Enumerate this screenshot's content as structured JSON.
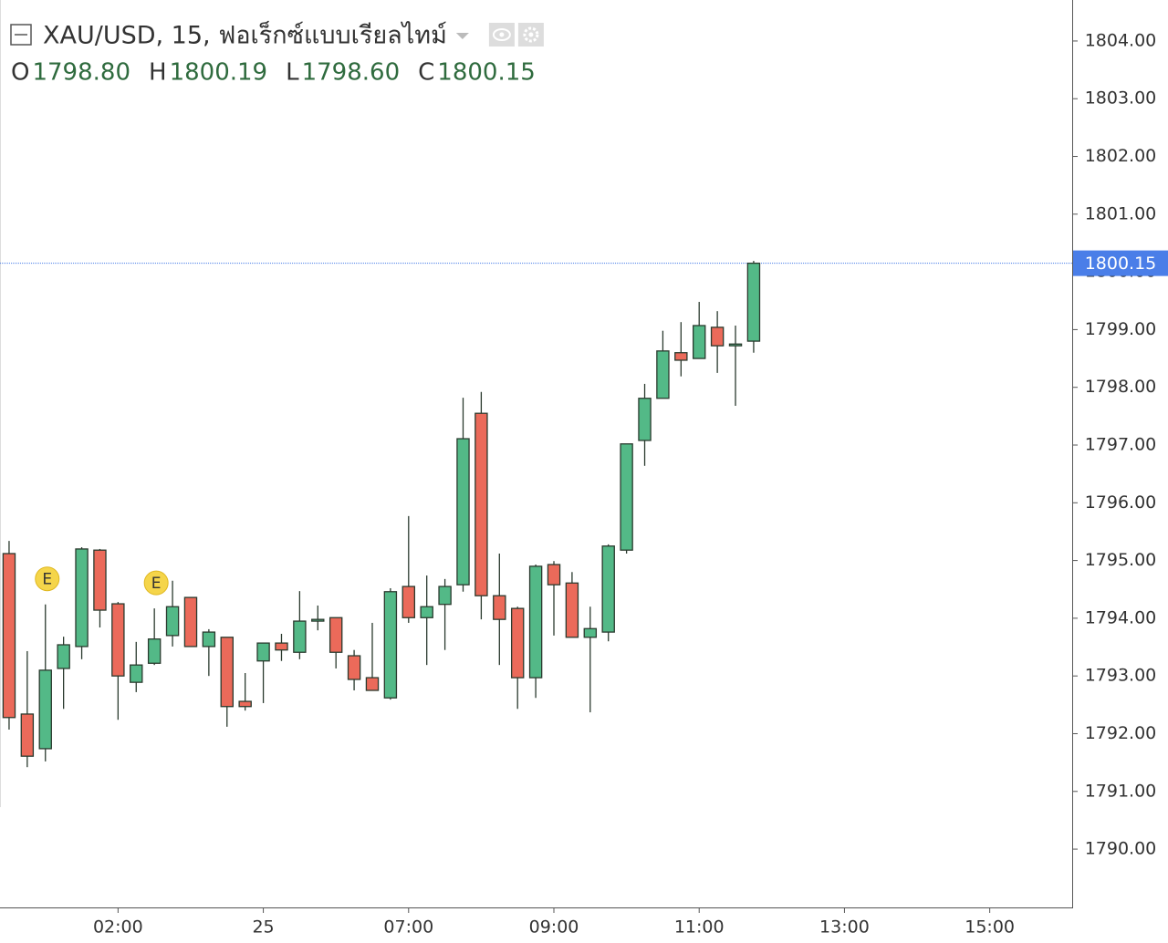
{
  "chart_data": {
    "type": "candlestick",
    "title": "XAU/USD, 15, ฟอเร็กซ์แบบเรียลไทม์",
    "ohlc_header": [
      {
        "key": "O",
        "value": "1798.80"
      },
      {
        "key": "H",
        "value": "1800.19"
      },
      {
        "key": "L",
        "value": "1798.60"
      },
      {
        "key": "C",
        "value": "1800.15"
      }
    ],
    "open": [
      1795.12,
      1792.34,
      1791.74,
      1793.13,
      1793.51,
      1795.18,
      1794.25,
      1792.89,
      1793.22,
      1793.7,
      1794.36,
      1793.51,
      1793.67,
      1792.56,
      1793.26,
      1793.57,
      1793.41,
      1793.95,
      1794.01,
      1793.35,
      1792.97,
      1792.62,
      1794.55,
      1794.01,
      1794.24,
      1794.58,
      1797.55,
      1794.39,
      1794.17,
      1792.97,
      1794.93,
      1794.61,
      1793.67,
      1793.76,
      1795.18,
      1797.08,
      1797.81,
      1798.6,
      1798.5,
      1799.04,
      1798.72,
      1798.8
    ],
    "high": [
      1795.34,
      1793.43,
      1794.24,
      1793.68,
      1795.23,
      1795.2,
      1794.28,
      1793.59,
      1794.17,
      1794.65,
      1794.36,
      1793.81,
      1793.67,
      1793.05,
      1793.57,
      1793.73,
      1794.47,
      1794.22,
      1794.01,
      1793.45,
      1793.92,
      1794.52,
      1795.77,
      1794.74,
      1794.68,
      1797.82,
      1797.92,
      1795.12,
      1794.2,
      1794.93,
      1794.99,
      1794.8,
      1794.2,
      1795.28,
      1797.02,
      1798.06,
      1798.98,
      1799.13,
      1799.48,
      1799.32,
      1799.07,
      1800.19
    ],
    "low": [
      1792.07,
      1791.42,
      1791.52,
      1792.43,
      1793.29,
      1793.84,
      1792.24,
      1792.72,
      1793.19,
      1793.51,
      1793.51,
      1793.0,
      1792.12,
      1792.4,
      1792.53,
      1793.26,
      1793.29,
      1793.79,
      1793.13,
      1792.75,
      1792.75,
      1792.59,
      1793.92,
      1793.19,
      1793.45,
      1794.46,
      1793.98,
      1793.19,
      1792.43,
      1792.62,
      1793.7,
      1793.67,
      1792.37,
      1793.6,
      1795.12,
      1796.64,
      1797.81,
      1798.19,
      1798.5,
      1798.25,
      1797.68,
      1798.6
    ],
    "close": [
      1792.28,
      1791.61,
      1793.1,
      1793.54,
      1795.2,
      1794.14,
      1793.0,
      1793.19,
      1793.64,
      1794.2,
      1793.51,
      1793.76,
      1792.47,
      1792.47,
      1793.57,
      1793.45,
      1793.95,
      1793.98,
      1793.41,
      1792.94,
      1792.75,
      1794.46,
      1794.01,
      1794.2,
      1794.55,
      1797.11,
      1794.39,
      1793.98,
      1792.97,
      1794.9,
      1794.58,
      1793.67,
      1793.82,
      1795.25,
      1797.02,
      1797.81,
      1798.63,
      1798.47,
      1799.07,
      1798.72,
      1798.75,
      1800.15
    ],
    "up_color": "#53b987",
    "down_color": "#eb6a5a",
    "border_color": "#2a3a2e",
    "events": [
      {
        "index": 2,
        "label": "E"
      },
      {
        "index": 8,
        "label": "E"
      }
    ],
    "last_price": 1800.15,
    "last_price_color": "#4a7ee8",
    "xlim": [
      -0.5,
      58.54
    ],
    "xticks": [
      {
        "value": 6,
        "label": "02:00"
      },
      {
        "value": 14,
        "label": "25"
      },
      {
        "value": 22,
        "label": "07:00"
      },
      {
        "value": 30,
        "label": "09:00"
      },
      {
        "value": 38,
        "label": "11:00"
      },
      {
        "value": 46,
        "label": "13:00"
      },
      {
        "value": 54,
        "label": "15:00"
      }
    ],
    "ylim": [
      1788.99,
      1804.71
    ],
    "yticks": [
      {
        "value": 1790,
        "label": "1790.00"
      },
      {
        "value": 1791,
        "label": "1791.00"
      },
      {
        "value": 1792,
        "label": "1792.00"
      },
      {
        "value": 1793,
        "label": "1793.00"
      },
      {
        "value": 1794,
        "label": "1794.00"
      },
      {
        "value": 1795,
        "label": "1795.00"
      },
      {
        "value": 1796,
        "label": "1796.00"
      },
      {
        "value": 1797,
        "label": "1797.00"
      },
      {
        "value": 1798,
        "label": "1798.00"
      },
      {
        "value": 1799,
        "label": "1799.00"
      },
      {
        "value": 1800,
        "label": "1800.00"
      },
      {
        "value": 1801,
        "label": "1801.00"
      },
      {
        "value": 1802,
        "label": "1802.00"
      },
      {
        "value": 1803,
        "label": "1803.00"
      },
      {
        "value": 1804,
        "label": "1804.00"
      }
    ]
  }
}
